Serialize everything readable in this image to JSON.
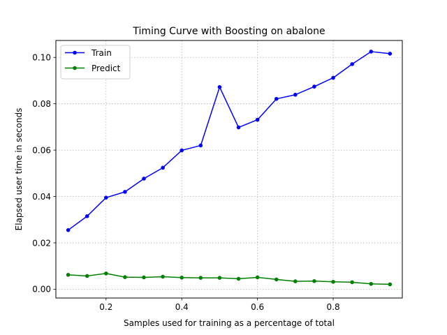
{
  "chart_data": {
    "type": "line",
    "title": "Timing Curve with Boosting on abalone",
    "xlabel": "Samples used for training as a percentage of total",
    "ylabel": "Elapsed user time in seconds",
    "xlim": [
      0.0675,
      0.9825
    ],
    "ylim": [
      -0.0038,
      0.1073
    ],
    "xticks": [
      0.2,
      0.4,
      0.6,
      0.8
    ],
    "xtick_labels": [
      "0.2",
      "0.4",
      "0.6",
      "0.8"
    ],
    "yticks": [
      0.0,
      0.02,
      0.04,
      0.06,
      0.08,
      0.1
    ],
    "ytick_labels": [
      "0.00",
      "0.02",
      "0.04",
      "0.06",
      "0.08",
      "0.10"
    ],
    "grid": true,
    "legend_position": "upper-left",
    "x": [
      0.1,
      0.15,
      0.2,
      0.25,
      0.3,
      0.35,
      0.4,
      0.45,
      0.5,
      0.55,
      0.6,
      0.65,
      0.7,
      0.75,
      0.8,
      0.85,
      0.9,
      0.95
    ],
    "series": [
      {
        "name": "Train",
        "color": "#0000ff",
        "values": [
          0.0255,
          0.0315,
          0.0395,
          0.042,
          0.0477,
          0.0524,
          0.0599,
          0.062,
          0.0872,
          0.0698,
          0.0731,
          0.0821,
          0.0839,
          0.0874,
          0.0912,
          0.0971,
          0.1025,
          0.1016
        ]
      },
      {
        "name": "Predict",
        "color": "#008000",
        "values": [
          0.0062,
          0.0057,
          0.0068,
          0.0052,
          0.0051,
          0.0054,
          0.005,
          0.0049,
          0.0049,
          0.0045,
          0.0051,
          0.0042,
          0.0034,
          0.0035,
          0.0032,
          0.003,
          0.0023,
          0.0021
        ]
      }
    ]
  }
}
